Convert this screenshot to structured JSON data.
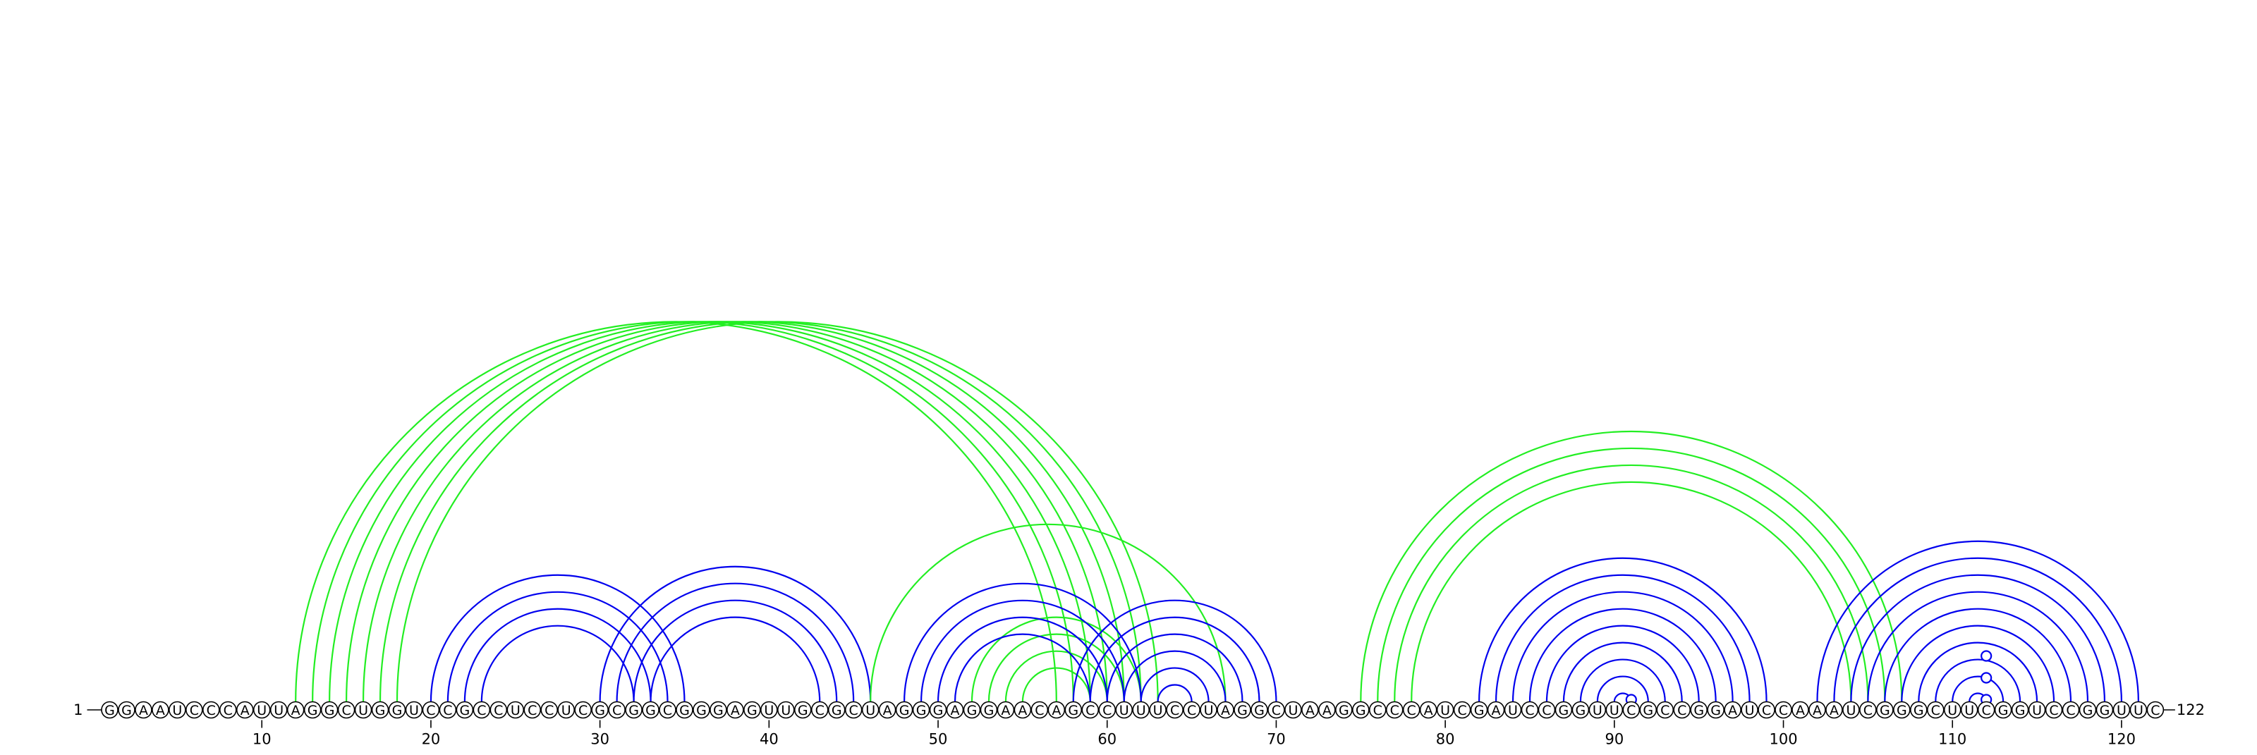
{
  "diagram": {
    "start_label": "1",
    "end_label": "122",
    "sequence": "GGAAUCCCAUUAGGCUGGUCCGCCUCCUCGCGGCGGGAGUUGCGCUAGGGAGGAACAGCCUUUCCUAGGCUAAGGCCCAUCGAUCCGGUUCGCCGGAUCCAAAUCGGGCUUCGGUCCGGUUC",
    "ticks": [
      10,
      20,
      30,
      40,
      50,
      60,
      70,
      80,
      90,
      100,
      110,
      120
    ],
    "colors": {
      "blue": "#0000ee",
      "green": "#22ee22"
    },
    "arc_groups": [
      {
        "color": "green",
        "pairs": [
          [
            12,
            57
          ],
          [
            13,
            58
          ],
          [
            14,
            59
          ],
          [
            15,
            60
          ],
          [
            16,
            61
          ],
          [
            17,
            62
          ],
          [
            18,
            63
          ]
        ]
      },
      {
        "color": "blue",
        "pairs": [
          [
            20,
            35
          ],
          [
            21,
            34
          ],
          [
            22,
            33
          ],
          [
            23,
            32
          ]
        ]
      },
      {
        "color": "blue",
        "pairs": [
          [
            30,
            46
          ],
          [
            31,
            45
          ],
          [
            32,
            44
          ],
          [
            33,
            43
          ]
        ]
      },
      {
        "color": "green",
        "pairs": [
          [
            46,
            67
          ],
          [
            52,
            62
          ],
          [
            53,
            61
          ],
          [
            54,
            60
          ],
          [
            55,
            59
          ]
        ]
      },
      {
        "color": "blue",
        "pairs": [
          [
            48,
            62
          ],
          [
            49,
            61
          ],
          [
            50,
            60
          ],
          [
            51,
            59
          ]
        ]
      },
      {
        "color": "blue",
        "pairs": [
          [
            58,
            70
          ],
          [
            59,
            69
          ],
          [
            60,
            68
          ],
          [
            61,
            67
          ],
          [
            62,
            66
          ],
          [
            63,
            65
          ]
        ]
      },
      {
        "color": "green",
        "pairs": [
          [
            75,
            107
          ],
          [
            76,
            106
          ],
          [
            77,
            105
          ],
          [
            78,
            104
          ]
        ]
      },
      {
        "color": "blue",
        "pairs": [
          [
            82,
            99
          ],
          [
            83,
            98
          ],
          [
            84,
            97
          ],
          [
            85,
            96
          ],
          [
            86,
            95
          ],
          [
            87,
            94
          ],
          [
            88,
            93
          ],
          [
            89,
            92
          ],
          [
            90,
            91
          ]
        ]
      },
      {
        "color": "blue",
        "pairs": [
          [
            102,
            121
          ],
          [
            103,
            120
          ],
          [
            104,
            119
          ],
          [
            105,
            118
          ],
          [
            106,
            117
          ],
          [
            107,
            116
          ],
          [
            108,
            115
          ],
          [
            109,
            114
          ],
          [
            110,
            113
          ],
          [
            111,
            112
          ]
        ]
      }
    ],
    "hairpin_markers": [
      {
        "color": "blue",
        "base": 91,
        "level": 1
      },
      {
        "color": "blue",
        "base": 112,
        "level": 1
      },
      {
        "color": "blue",
        "base": 112,
        "level": 2
      },
      {
        "color": "blue",
        "base": 112,
        "level": 3
      }
    ]
  }
}
